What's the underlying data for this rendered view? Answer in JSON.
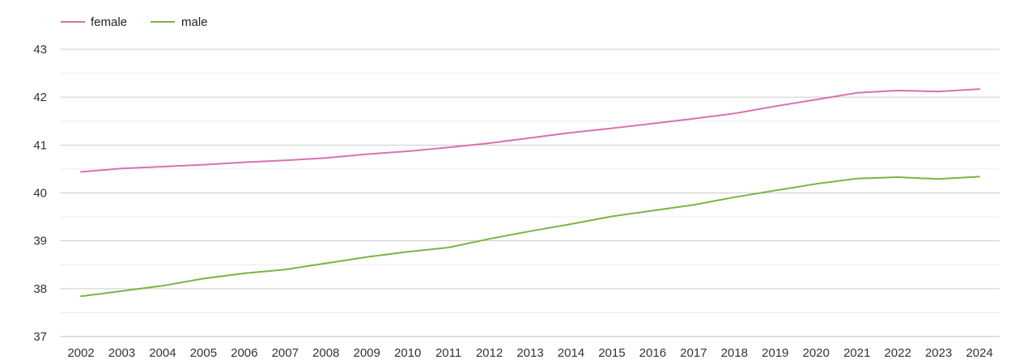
{
  "chart_data": {
    "type": "line",
    "title": "",
    "xlabel": "",
    "ylabel": "",
    "x": [
      "2002",
      "2003",
      "2004",
      "2005",
      "2006",
      "2007",
      "2008",
      "2009",
      "2010",
      "2011",
      "2012",
      "2013",
      "2014",
      "2015",
      "2016",
      "2017",
      "2018",
      "2019",
      "2020",
      "2021",
      "2022",
      "2023",
      "2024"
    ],
    "yticks": [
      37,
      38,
      39,
      40,
      41,
      42,
      43
    ],
    "ylim": [
      37,
      43
    ],
    "grid": true,
    "minor_grid": true,
    "legend_position": "top-left",
    "series": [
      {
        "name": "female",
        "color": "#d971ad",
        "values": [
          40.44,
          40.51,
          40.55,
          40.59,
          40.64,
          40.68,
          40.73,
          40.81,
          40.87,
          40.95,
          41.04,
          41.15,
          41.26,
          41.35,
          41.45,
          41.55,
          41.66,
          41.81,
          41.95,
          42.09,
          42.14,
          42.12,
          42.17
        ]
      },
      {
        "name": "male",
        "color": "#7cb342",
        "values": [
          37.84,
          37.95,
          38.06,
          38.21,
          38.32,
          38.4,
          38.53,
          38.66,
          38.77,
          38.86,
          39.04,
          39.2,
          39.35,
          39.51,
          39.63,
          39.75,
          39.91,
          40.05,
          40.19,
          40.3,
          40.33,
          40.29,
          40.34
        ]
      }
    ]
  }
}
